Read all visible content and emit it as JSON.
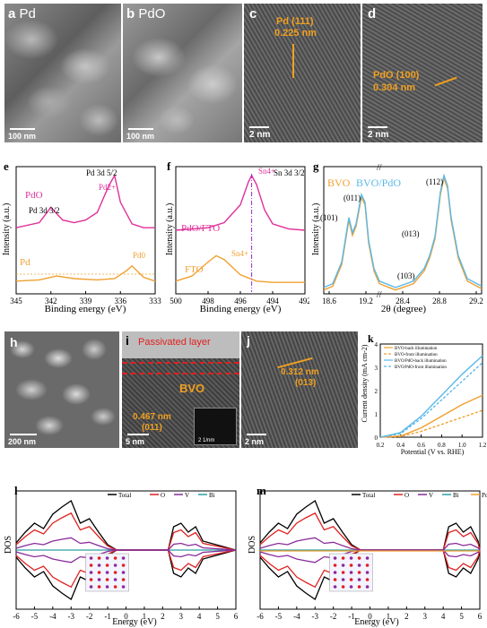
{
  "panels": {
    "a": {
      "letter": "a",
      "name": "Pd",
      "scale": "100 nm"
    },
    "b": {
      "letter": "b",
      "name": "PdO",
      "scale": "100 nm"
    },
    "c": {
      "letter": "c",
      "annot1": "Pd (111)",
      "annot2": "0.225 nm",
      "scale": "2 nm"
    },
    "d": {
      "letter": "d",
      "annot1": "PdO (100)",
      "annot2": "0.304 nm",
      "scale": "2 nm"
    },
    "h": {
      "letter": "h",
      "scale": "200 nm"
    },
    "i": {
      "letter": "i",
      "annot_layer": "Passivated layer",
      "annot_bvo": "BVO",
      "annot1": "0.467 nm",
      "annot2": "(011)",
      "scale": "5 nm",
      "inset_scale": "2 1/nm"
    },
    "j": {
      "letter": "j",
      "annot1": "0.312 nm",
      "annot2": "(013)",
      "scale": "2 nm"
    }
  },
  "colors": {
    "pdo": "#e0309a",
    "pd": "#f0a030",
    "bvo": "#f0a030",
    "bvopdo": "#5ab8e8",
    "total": "#000000",
    "O": "#e02020",
    "V": "#8a2a9a",
    "Bi": "#2aa0a0",
    "Pd_dos": "#f0a030"
  },
  "chart_data": [
    {
      "id": "e",
      "type": "line",
      "letter": "e",
      "xlabel": "Binding energy (eV)",
      "ylabel": "Intensity (a.u.)",
      "xticks": [
        "345",
        "342",
        "339",
        "336",
        "333"
      ],
      "xlim": [
        345,
        333
      ],
      "labels": {
        "pd3d32": "Pd 3d 3/2",
        "pd3d52": "Pd 3d 5/2",
        "pd2": "Pd2+",
        "pd0": "Pd0"
      },
      "series": [
        {
          "name": "PdO",
          "x": [
            345,
            343,
            342,
            341,
            340,
            339,
            338,
            337,
            336.5,
            336,
            335,
            334,
            333
          ],
          "y": [
            0.52,
            0.56,
            0.68,
            0.58,
            0.56,
            0.58,
            0.64,
            0.85,
            0.93,
            0.72,
            0.55,
            0.52,
            0.52
          ]
        },
        {
          "name": "Pd",
          "x": [
            345,
            343,
            341.5,
            340,
            338,
            336.5,
            335.5,
            335,
            334,
            333
          ],
          "y": [
            0.1,
            0.11,
            0.14,
            0.12,
            0.11,
            0.12,
            0.18,
            0.22,
            0.13,
            0.1
          ]
        }
      ]
    },
    {
      "id": "f",
      "type": "line",
      "letter": "f",
      "xlabel": "Binding energy (eV)",
      "ylabel": "Intensity (a.u.)",
      "xticks": [
        "500",
        "498",
        "496",
        "494",
        "492"
      ],
      "xlim": [
        500,
        492
      ],
      "labels": {
        "sn4_top": "Sn4+",
        "sn3d": "Sn 3d 3/2",
        "sn4_bot": "Sn4+"
      },
      "series": [
        {
          "name": "PdO/FTO",
          "x": [
            500,
            498,
            497,
            496,
            495.5,
            495.3,
            495,
            494.5,
            494,
            493,
            492
          ],
          "y": [
            0.5,
            0.52,
            0.56,
            0.7,
            0.88,
            0.93,
            0.86,
            0.66,
            0.55,
            0.51,
            0.5
          ]
        },
        {
          "name": "FTO",
          "x": [
            500,
            499,
            498,
            497.5,
            497,
            496,
            495,
            494,
            493,
            492
          ],
          "y": [
            0.1,
            0.14,
            0.25,
            0.3,
            0.27,
            0.15,
            0.1,
            0.09,
            0.09,
            0.09
          ]
        }
      ]
    },
    {
      "id": "g",
      "type": "line",
      "letter": "g",
      "xlabel": "2θ (degree)",
      "ylabel": "Intensity (a.u.)",
      "xticks": [
        "18.6",
        "19.2",
        "28.4",
        "28.8",
        "29.2"
      ],
      "peak_labels": [
        "(101)",
        "(011)",
        "(013)",
        "(103)",
        "(112)"
      ],
      "series": [
        {
          "name": "BVO"
        },
        {
          "name": "BVO/PdO"
        }
      ]
    },
    {
      "id": "k",
      "type": "line",
      "letter": "k",
      "xlabel": "Potential (V vs. RHE)",
      "ylabel": "Current density (mA cm-2)",
      "xticks": [
        "0.2",
        "0.4",
        "0.6",
        "0.8",
        "1.0",
        "1.2"
      ],
      "yticks": [
        "0",
        "1",
        "2",
        "3",
        "4"
      ],
      "xlim": [
        0.2,
        1.2
      ],
      "ylim": [
        0,
        4
      ],
      "series": [
        {
          "name": "BVO-back illumination",
          "x": [
            0.2,
            0.4,
            0.6,
            0.8,
            1.0,
            1.2
          ],
          "y": [
            0,
            0.05,
            0.4,
            0.9,
            1.4,
            1.8
          ]
        },
        {
          "name": "BVO-front illumination",
          "x": [
            0.2,
            0.4,
            0.6,
            0.8,
            1.0,
            1.2
          ],
          "y": [
            0,
            0.03,
            0.25,
            0.55,
            0.85,
            1.15
          ]
        },
        {
          "name": "BVO/PdO-back illumination",
          "x": [
            0.2,
            0.4,
            0.6,
            0.8,
            1.0,
            1.2
          ],
          "y": [
            0,
            0.2,
            0.9,
            1.8,
            2.7,
            3.5
          ]
        },
        {
          "name": "BVO/PdO-front illumination",
          "x": [
            0.2,
            0.4,
            0.6,
            0.8,
            1.0,
            1.2
          ],
          "y": [
            0,
            0.15,
            0.8,
            1.6,
            2.4,
            3.2
          ]
        }
      ]
    },
    {
      "id": "l",
      "type": "line",
      "letter": "l",
      "xlabel": "Energy (eV)",
      "ylabel": "DOS",
      "xticks": [
        "-6",
        "-5",
        "-4",
        "-3",
        "-2",
        "-1",
        "0",
        "1",
        "2",
        "3",
        "4",
        "5",
        "6"
      ],
      "legend": [
        "Total",
        "O",
        "V",
        "Bi"
      ]
    },
    {
      "id": "m",
      "type": "line",
      "letter": "m",
      "xlabel": "Energy (eV)",
      "ylabel": "DOS",
      "xticks": [
        "-6",
        "-5",
        "-4",
        "-3",
        "-2",
        "-1",
        "0",
        "1",
        "2",
        "3",
        "4",
        "5",
        "6"
      ],
      "legend": [
        "Total",
        "O",
        "V",
        "Bi",
        "Pd"
      ]
    }
  ]
}
